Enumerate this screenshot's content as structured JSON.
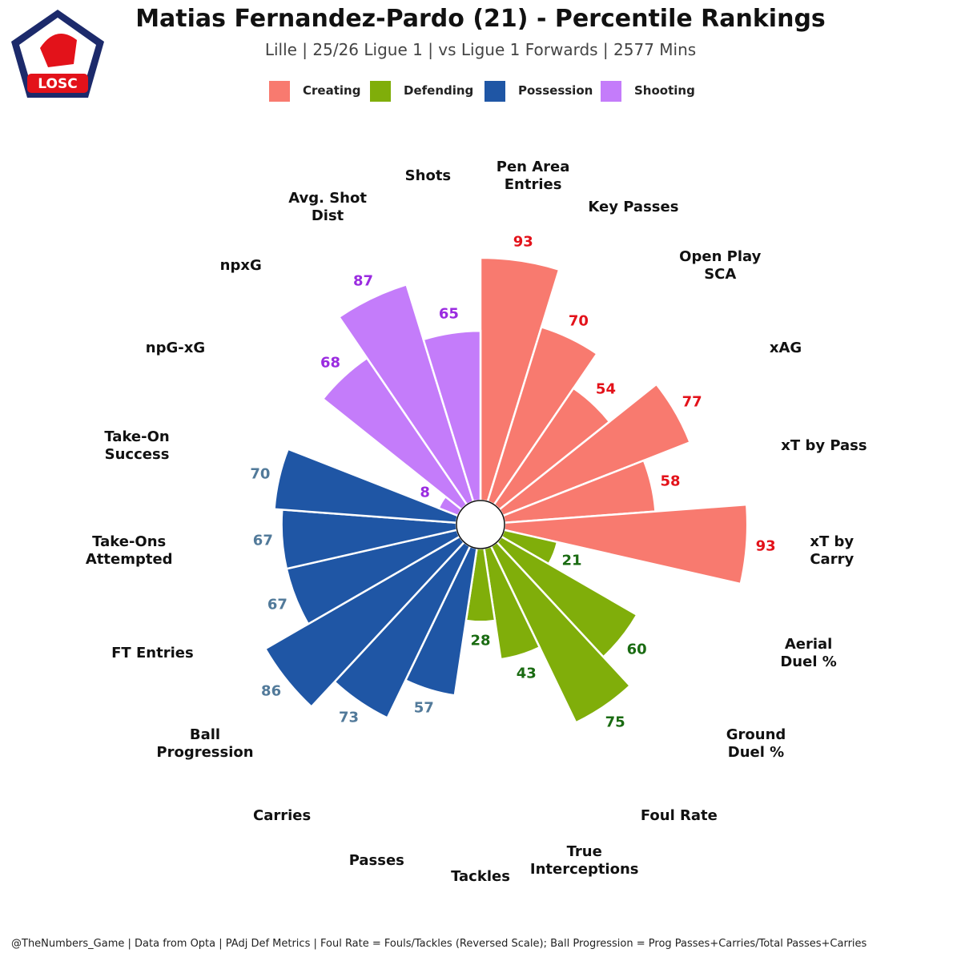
{
  "logo": {
    "text": "LOSC"
  },
  "chart_data": {
    "type": "polar_bar",
    "title": "Matias Fernandez-Pardo (21) - Percentile Rankings",
    "subtitle": "Lille | 25/26 Ligue 1 | vs Ligue 1 Forwards | 2577 Mins",
    "footer": "@TheNumbers_Game | Data from Opta | PAdj Def Metrics | Foul Rate = Fouls/Tackles (Reversed Scale); Ball Progression = Prog Passes+Carries/Total Passes+Carries",
    "rlim": [
      0,
      100
    ],
    "series": [
      {
        "name": "Creating",
        "color": "#f87a6f",
        "label_color": "#e3121a",
        "categories": [
          "Pen Area\nEntries",
          "Key Passes",
          "Open Play\nSCA",
          "xAG",
          "xT by Pass",
          "xT by\nCarry"
        ],
        "values": [
          93,
          70,
          54,
          77,
          58,
          93
        ]
      },
      {
        "name": "Defending",
        "color": "#80ae0a",
        "label_color": "#1a6b12",
        "categories": [
          "Aerial\nDuel %",
          "Ground\nDuel %",
          "Foul Rate",
          "True\nInterceptions",
          "Tackles"
        ],
        "values": [
          21,
          60,
          75,
          43,
          28
        ]
      },
      {
        "name": "Possession",
        "color": "#1f56a5",
        "label_color": "#527a9a",
        "categories": [
          "Passes",
          "Carries",
          "Ball\nProgression",
          "FT Entries",
          "Take-Ons\nAttempted",
          "Take-On\nSuccess"
        ],
        "values": [
          57,
          73,
          86,
          67,
          67,
          70
        ]
      },
      {
        "name": "Shooting",
        "color": "#c47cfa",
        "label_color": "#9a2be0",
        "categories": [
          "npG-xG",
          "npxG",
          "Avg. Shot\nDist",
          "Shots"
        ],
        "values": [
          8,
          68,
          87,
          65
        ]
      }
    ]
  }
}
